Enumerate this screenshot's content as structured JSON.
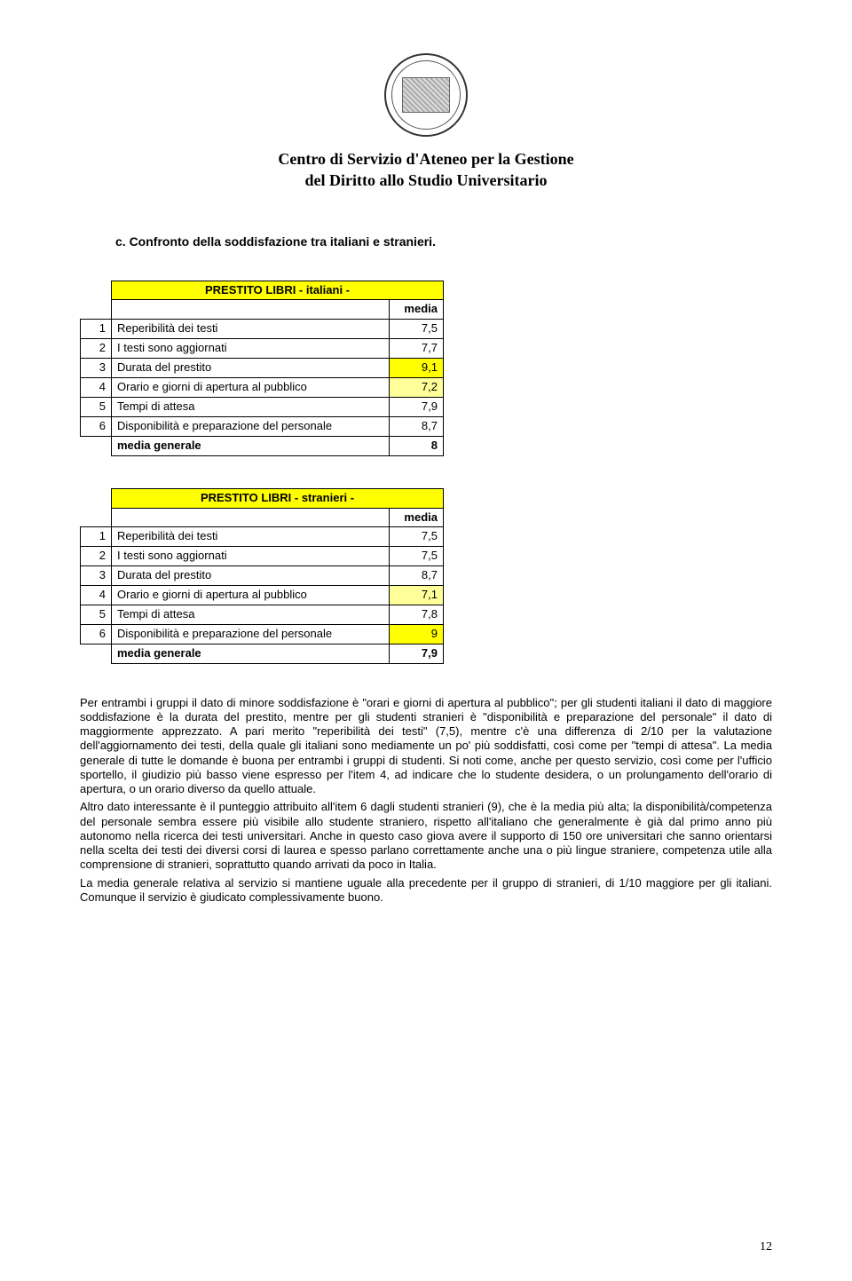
{
  "header": {
    "title_line1": "Centro di Servizio d'Ateneo per la Gestione",
    "title_line2": "del Diritto allo Studio Universitario"
  },
  "section": {
    "label": "c.  Confronto della soddisfazione tra italiani e stranieri."
  },
  "table1": {
    "title": "PRESTITO LIBRI - italiani -",
    "media_hdr": "media",
    "rows": [
      {
        "n": "1",
        "label": "Reperibilità dei testi",
        "val": "7,5"
      },
      {
        "n": "2",
        "label": "I testi sono aggiornati",
        "val": "7,7"
      },
      {
        "n": "3",
        "label": "Durata del prestito",
        "val": "9,1"
      },
      {
        "n": "4",
        "label": "Orario e giorni di apertura al pubblico",
        "val": "7,2"
      },
      {
        "n": "5",
        "label": "Tempi di attesa",
        "val": "7,9"
      },
      {
        "n": "6",
        "label": "Disponibilità e preparazione del personale",
        "val": "8,7"
      }
    ],
    "footer_label": "media generale",
    "footer_val": "8",
    "hl_row": 3,
    "min_row": 4
  },
  "table2": {
    "title": "PRESTITO LIBRI - stranieri -",
    "media_hdr": "media",
    "rows": [
      {
        "n": "1",
        "label": "Reperibilità dei testi",
        "val": "7,5"
      },
      {
        "n": "2",
        "label": "I testi sono aggiornati",
        "val": "7,5"
      },
      {
        "n": "3",
        "label": "Durata del prestito",
        "val": "8,7"
      },
      {
        "n": "4",
        "label": "Orario e giorni di apertura al pubblico",
        "val": "7,1"
      },
      {
        "n": "5",
        "label": "Tempi di attesa",
        "val": "7,8"
      },
      {
        "n": "6",
        "label": "Disponibilità e preparazione del personale",
        "val": "9"
      }
    ],
    "footer_label": "media generale",
    "footer_val": "7,9",
    "hl_row": 6,
    "min_row": 4
  },
  "body": {
    "p1": "Per entrambi i gruppi il dato di minore soddisfazione è \"orari e giorni di apertura al pubblico\"; per gli  studenti italiani il dato di maggiore soddisfazione è la durata del prestito, mentre per gli studenti stranieri è \"disponibilità e preparazione del personale\" il dato di maggiormente apprezzato. A pari merito \"reperibilità dei testi\" (7,5), mentre c'è una differenza di 2/10 per la valutazione dell'aggiornamento dei testi, della quale gli italiani sono mediamente un po' più soddisfatti, così come per \"tempi di attesa\". La media generale di tutte le domande è buona per entrambi i gruppi di studenti. Si noti come, anche per questo servizio, così come per l'ufficio sportello, il giudizio più basso viene espresso per l'item 4, ad indicare che lo studente desidera, o un prolungamento dell'orario di apertura, o un orario diverso da quello attuale.",
    "p2": "Altro dato interessante è il punteggio attribuito all'item 6 dagli studenti stranieri (9), che è la media più alta; la disponibilità/competenza del personale sembra essere più visibile allo studente straniero, rispetto all'italiano che generalmente è già dal primo anno più autonomo nella ricerca dei testi universitari. Anche in questo caso giova avere il supporto di 150 ore universitari che sanno orientarsi nella scelta dei testi dei diversi corsi di laurea e spesso parlano correttamente anche una o più lingue straniere, competenza utile alla comprensione di stranieri, soprattutto quando arrivati da poco in Italia.",
    "p3": "La media generale relativa al servizio si mantiene uguale alla precedente per il gruppo di stranieri, di 1/10 maggiore per gli italiani. Comunque il servizio è giudicato complessivamente buono."
  },
  "pagenum": "12"
}
